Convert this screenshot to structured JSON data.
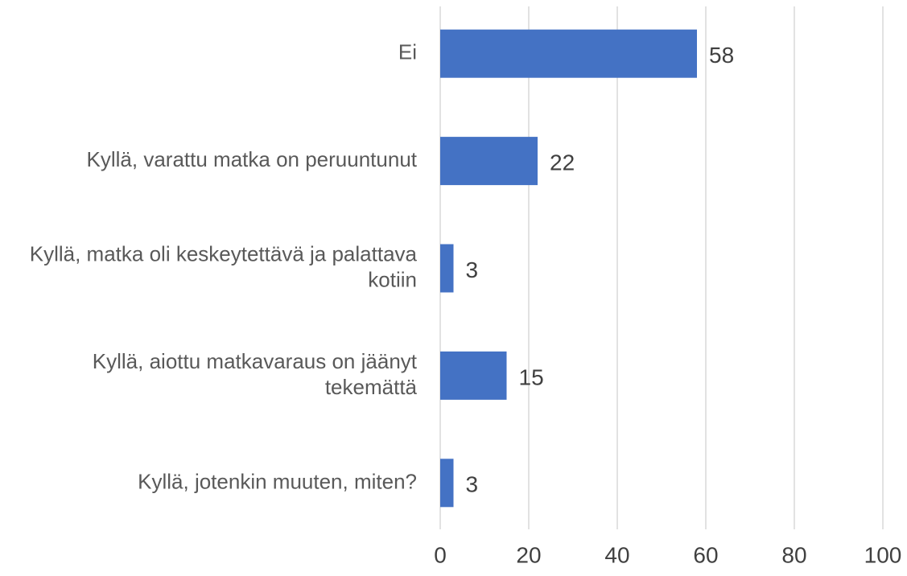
{
  "chart_data": {
    "type": "barh",
    "categories": [
      "Ei",
      "Kyllä, varattu matka on peruuntunut",
      "Kyllä, matka oli keskeytettävä ja palattava kotiin",
      "Kyllä, aiottu matkavaraus on jäänyt tekemättä",
      "Kyllä, jotenkin muuten, miten?"
    ],
    "values": [
      58,
      22,
      3,
      15,
      3
    ],
    "color": "#4472c4",
    "xlim": [
      0,
      100
    ],
    "xticks": [
      0,
      20,
      40,
      60,
      80,
      100
    ],
    "grid": true
  }
}
